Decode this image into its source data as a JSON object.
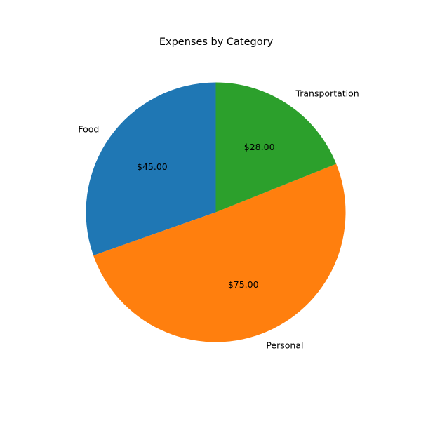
{
  "chart_data": {
    "type": "pie",
    "title": "Expenses by Category",
    "value_format": "$%.2f",
    "start_angle_deg": 90,
    "direction": "counterclockwise",
    "slices": [
      {
        "label": "Food",
        "value": 45,
        "display": "$45.00",
        "color": "#1f77b4"
      },
      {
        "label": "Personal",
        "value": 75,
        "display": "$75.00",
        "color": "#ff7f0e"
      },
      {
        "label": "Transportation",
        "value": 28,
        "display": "$28.00",
        "color": "#2ca02c"
      }
    ]
  }
}
